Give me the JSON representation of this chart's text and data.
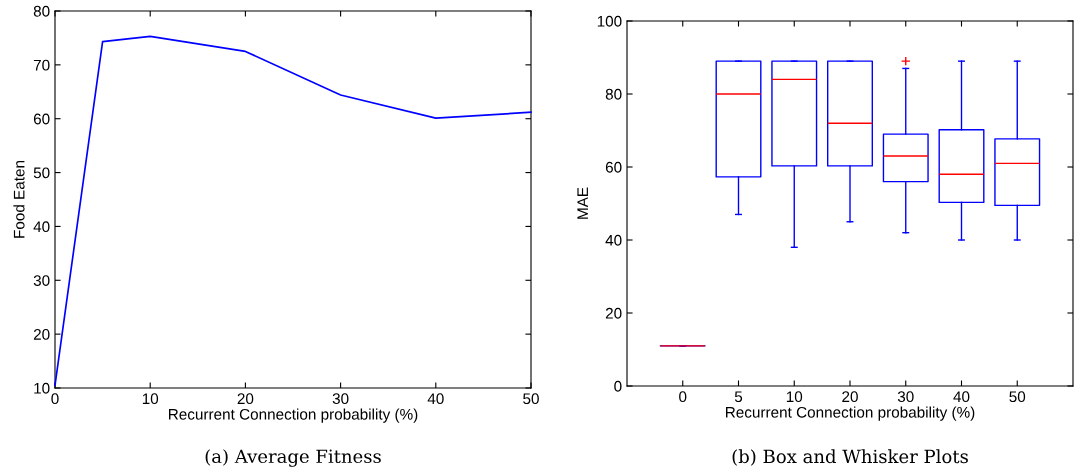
{
  "chart_data": [
    {
      "type": "line",
      "title": "(a) Average Fitness",
      "xlabel": "Recurrent Connection probability (%)",
      "ylabel": "Food Eaten",
      "x": [
        0,
        5,
        10,
        20,
        30,
        40,
        50
      ],
      "series": [
        {
          "color": "#0000ff",
          "values": [
            10.5,
            74.3,
            75.3,
            72.5,
            64.4,
            60.1,
            61.2
          ]
        }
      ],
      "xlim": [
        0,
        50
      ],
      "xticks": [
        0,
        10,
        20,
        30,
        40,
        50
      ],
      "ylim": [
        10,
        80
      ],
      "yticks": [
        10,
        20,
        30,
        40,
        50,
        60,
        70,
        80
      ],
      "grid": false,
      "marker": "none",
      "line_style": "solid"
    },
    {
      "type": "box",
      "title": "(b) Box and Whisker Plots",
      "xlabel": "Recurrent Connection probability (%)",
      "ylabel": "MAE",
      "categories": [
        "0",
        "5",
        "10",
        "20",
        "30",
        "40",
        "50"
      ],
      "series": [
        {
          "color": "#0000ff",
          "boxes": [
            {
              "low": 11,
              "q1": 11,
              "median": 11,
              "q3": 11,
              "high": 11
            },
            {
              "low": 47,
              "q1": 57.3,
              "median": 80,
              "q3": 89,
              "high": 89
            },
            {
              "low": 38,
              "q1": 60.3,
              "median": 84,
              "q3": 89,
              "high": 89
            },
            {
              "low": 45,
              "q1": 60.3,
              "median": 72,
              "q3": 89,
              "high": 89
            },
            {
              "low": 42,
              "q1": 56,
              "median": 63,
              "q3": 69,
              "high": 87,
              "outliers": [
                89
              ]
            },
            {
              "low": 40,
              "q1": 50.3,
              "median": 58,
              "q3": 70.2,
              "high": 89
            },
            {
              "low": 40,
              "q1": 49.5,
              "median": 61,
              "q3": 67.7,
              "high": 89
            }
          ]
        }
      ],
      "ylim": [
        0,
        100
      ],
      "yticks": [
        0,
        20,
        40,
        60,
        80,
        100
      ],
      "grid": false
    }
  ]
}
